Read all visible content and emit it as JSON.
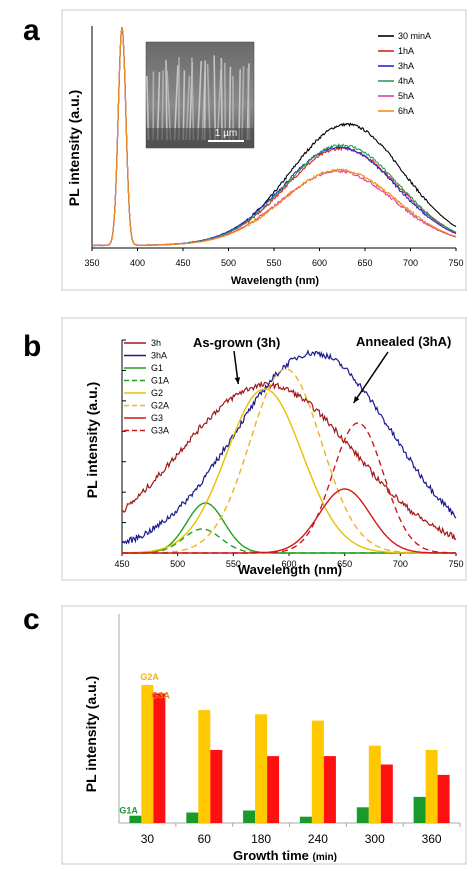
{
  "panels": {
    "a": {
      "letter": "a"
    },
    "b": {
      "letter": "b"
    },
    "c": {
      "letter": "c"
    }
  },
  "chart_data": [
    {
      "type": "line",
      "panel": "a",
      "xlabel": "Wavelength (nm)",
      "ylabel": "PL intensity (a.u.)",
      "xlim": [
        350,
        750
      ],
      "ylim": [
        0,
        1
      ],
      "xticks": [
        350,
        400,
        450,
        500,
        550,
        600,
        650,
        700,
        750
      ],
      "legend_position": "top-right",
      "inset": {
        "description_scale_bar": "1 µm"
      },
      "series": [
        {
          "name": "30 minA",
          "color": "#000000",
          "uv_peak": 1.0,
          "visible_peak": 0.555,
          "visible_center": 630
        },
        {
          "name": "1hA",
          "color": "#e02020",
          "uv_peak": 1.0,
          "visible_peak": 0.445,
          "visible_center": 625
        },
        {
          "name": "3hA",
          "color": "#2a2ad0",
          "uv_peak": 1.0,
          "visible_peak": 0.45,
          "visible_center": 622
        },
        {
          "name": "4hA",
          "color": "#2aa05a",
          "uv_peak": 1.0,
          "visible_peak": 0.46,
          "visible_center": 625
        },
        {
          "name": "5hA",
          "color": "#e040a0",
          "uv_peak": 1.0,
          "visible_peak": 0.34,
          "visible_center": 620
        },
        {
          "name": "6hA",
          "color": "#f0901a",
          "uv_peak": 1.0,
          "visible_peak": 0.345,
          "visible_center": 622
        }
      ]
    },
    {
      "type": "line",
      "panel": "b",
      "xlabel": "Wavelength (nm)",
      "ylabel": "PL intensity (a.u.)",
      "xlim": [
        450,
        750
      ],
      "ylim": [
        0,
        1
      ],
      "xticks": [
        450,
        500,
        550,
        600,
        650,
        700,
        750
      ],
      "legend_position": "top-left",
      "annotations": [
        {
          "text": "As-grown (3h)",
          "target_x": 558,
          "target_y": 0.83
        },
        {
          "text": "Annealed (3hA)",
          "target_x": 658,
          "target_y": 0.74
        }
      ],
      "series": [
        {
          "name": "3h",
          "color": "#a01818",
          "dash": false,
          "peak": 0.84,
          "center": 580,
          "width": 78
        },
        {
          "name": "3hA",
          "color": "#1a1a8c",
          "dash": false,
          "peak": 1.0,
          "center": 622,
          "width": 70
        },
        {
          "name": "G1",
          "color": "#20a020",
          "dash": false,
          "peak": 0.25,
          "center": 525,
          "width": 17
        },
        {
          "name": "G1A",
          "color": "#20a020",
          "dash": true,
          "peak": 0.12,
          "center": 522,
          "width": 17
        },
        {
          "name": "G2",
          "color": "#e8c000",
          "dash": false,
          "peak": 0.82,
          "center": 578,
          "width": 34
        },
        {
          "name": "G2A",
          "color": "#f0b020",
          "dash": true,
          "peak": 0.92,
          "center": 597,
          "width": 32
        },
        {
          "name": "G3",
          "color": "#d01818",
          "dash": false,
          "peak": 0.32,
          "center": 650,
          "width": 23
        },
        {
          "name": "G3A",
          "color": "#d01818",
          "dash": true,
          "peak": 0.65,
          "center": 662,
          "width": 23
        }
      ]
    },
    {
      "type": "bar",
      "panel": "c",
      "xlabel": "Growth time",
      "xlabel_unit": "(min)",
      "ylabel": "PL intensity (a.u.)",
      "categories": [
        "30",
        "60",
        "180",
        "240",
        "300",
        "360"
      ],
      "ylim": [
        0,
        1
      ],
      "series": [
        {
          "name": "G1A",
          "color": "#1a9a2a",
          "values": [
            0.035,
            0.05,
            0.06,
            0.03,
            0.075,
            0.125
          ]
        },
        {
          "name": "G2A",
          "color": "#ffc800",
          "values": [
            0.66,
            0.54,
            0.52,
            0.49,
            0.37,
            0.35
          ]
        },
        {
          "name": "G3A",
          "color": "#ff1010",
          "values": [
            0.62,
            0.35,
            0.32,
            0.32,
            0.28,
            0.23
          ]
        }
      ],
      "bar_labels": [
        {
          "text": "G1A",
          "color": "#1a9a2a"
        },
        {
          "text": "G2A",
          "color": "#f0b020"
        },
        {
          "text": "G3A",
          "color": "#e08020"
        }
      ]
    }
  ]
}
